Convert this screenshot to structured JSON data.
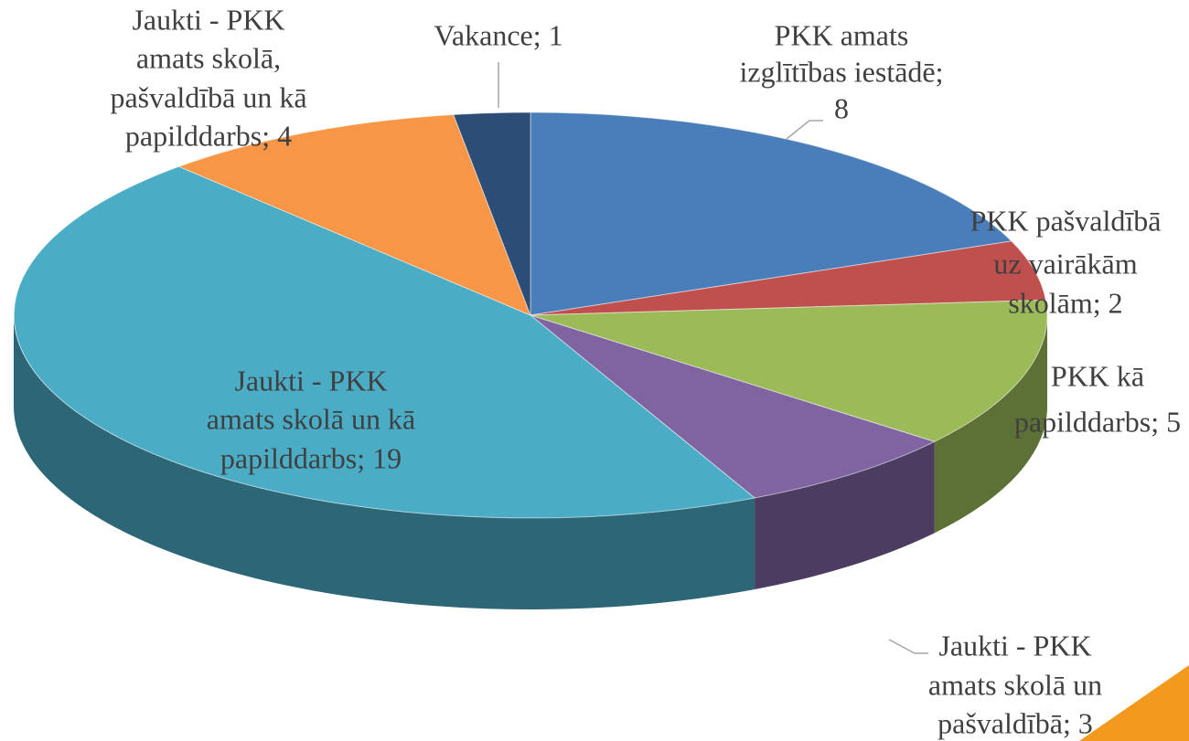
{
  "chart_data": {
    "type": "pie3d",
    "value_labels": [
      [
        "PKK amats",
        "izglītības iestādē;",
        "8"
      ],
      [
        "PKK pašvaldībā",
        "uz vairākām",
        "skolām; 2"
      ],
      [
        "PKK kā",
        "papilddarbs; 5"
      ],
      [
        "Jaukti - PKK",
        "amats skolā un",
        "pašvaldībā; 3"
      ],
      [
        "Jaukti - PKK",
        "amats skolā un kā",
        "papilddarbs; 19"
      ],
      [
        "Jaukti -  PKK",
        "amats skolā,",
        "pašvaldībā un kā",
        "papilddarbs; 4"
      ],
      [
        "Vakance; 1"
      ]
    ],
    "values": [
      8,
      2,
      5,
      3,
      19,
      4,
      1
    ],
    "colors": [
      "#4a7ebb",
      "#c0504d",
      "#9bbb59",
      "#8064a2",
      "#4bacc6",
      "#f79646",
      "#2c4d75"
    ]
  }
}
